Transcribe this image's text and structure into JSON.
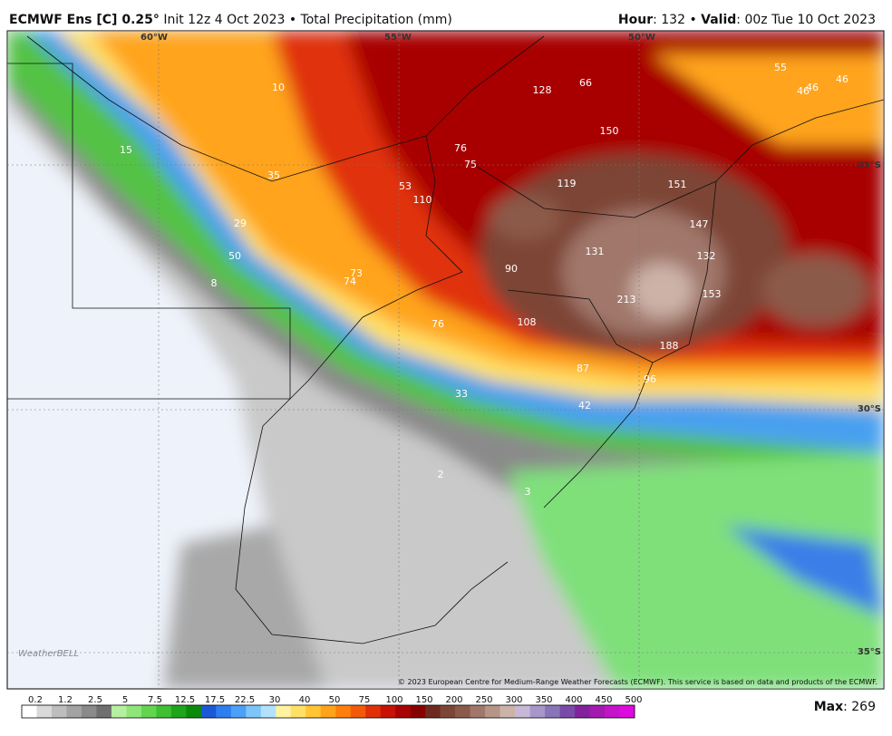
{
  "header": {
    "left": [
      {
        "text": "ECMWF Ens [C] 0.25°",
        "bold": true
      },
      {
        "text": " Init 12z 4 Oct 2023 • Total Precipitation (mm)",
        "bold": false
      }
    ],
    "right": [
      {
        "text": "Hour",
        "bold": true
      },
      {
        "text": ": 132 • ",
        "bold": false
      },
      {
        "text": "Valid",
        "bold": true
      },
      {
        "text": ": 00z Tue 10 Oct 2023",
        "bold": false
      }
    ]
  },
  "map": {
    "grid_labels": [
      "60°W",
      "55°W",
      "50°W",
      "25°S",
      "30°S",
      "35°S"
    ],
    "values": [
      10,
      15,
      35,
      29,
      50,
      8,
      53,
      110,
      76,
      75,
      128,
      66,
      150,
      119,
      151,
      147,
      132,
      131,
      90,
      73,
      74,
      213,
      153,
      76,
      108,
      188,
      87,
      96,
      33,
      42,
      2,
      3,
      55,
      46,
      46,
      46
    ],
    "logo": "WeatherBELL",
    "copyright": "© 2023 European Centre for Medium-Range Weather Forecasts (ECMWF). This service is based on data and products of the ECMWF."
  },
  "colorbar": {
    "labels": [
      0.2,
      1.2,
      2.5,
      5,
      7.5,
      12.5,
      17.5,
      22.5,
      30,
      40,
      50,
      75,
      100,
      150,
      200,
      250,
      300,
      350,
      400,
      450,
      500
    ],
    "colors": [
      "#ffffff",
      "#d9d9d9",
      "#bdbdbd",
      "#a3a3a3",
      "#8a8a8a",
      "#6f6f6f",
      "#b4f0a0",
      "#8fe57a",
      "#64d44f",
      "#3fbf32",
      "#1fa51b",
      "#0a8a0a",
      "#1c58d6",
      "#2e7ef0",
      "#4aa1f5",
      "#7cc4fa",
      "#b3e1fc",
      "#fff3a0",
      "#ffe066",
      "#ffc533",
      "#ffa41a",
      "#ff7f0e",
      "#f25a0a",
      "#e03008",
      "#c81206",
      "#a80404",
      "#870000",
      "#6e2a20",
      "#7d4535",
      "#8c5a4a",
      "#a0776a",
      "#b69488",
      "#ccb2a8",
      "#c8b8d8",
      "#a996c8",
      "#8a74b8",
      "#7a4aa8",
      "#82229c",
      "#a21ab0",
      "#c214c8",
      "#de0ae0"
    ],
    "max": [
      {
        "text": "Max",
        "bold": true
      },
      {
        "text": ": 269",
        "bold": false
      }
    ]
  }
}
